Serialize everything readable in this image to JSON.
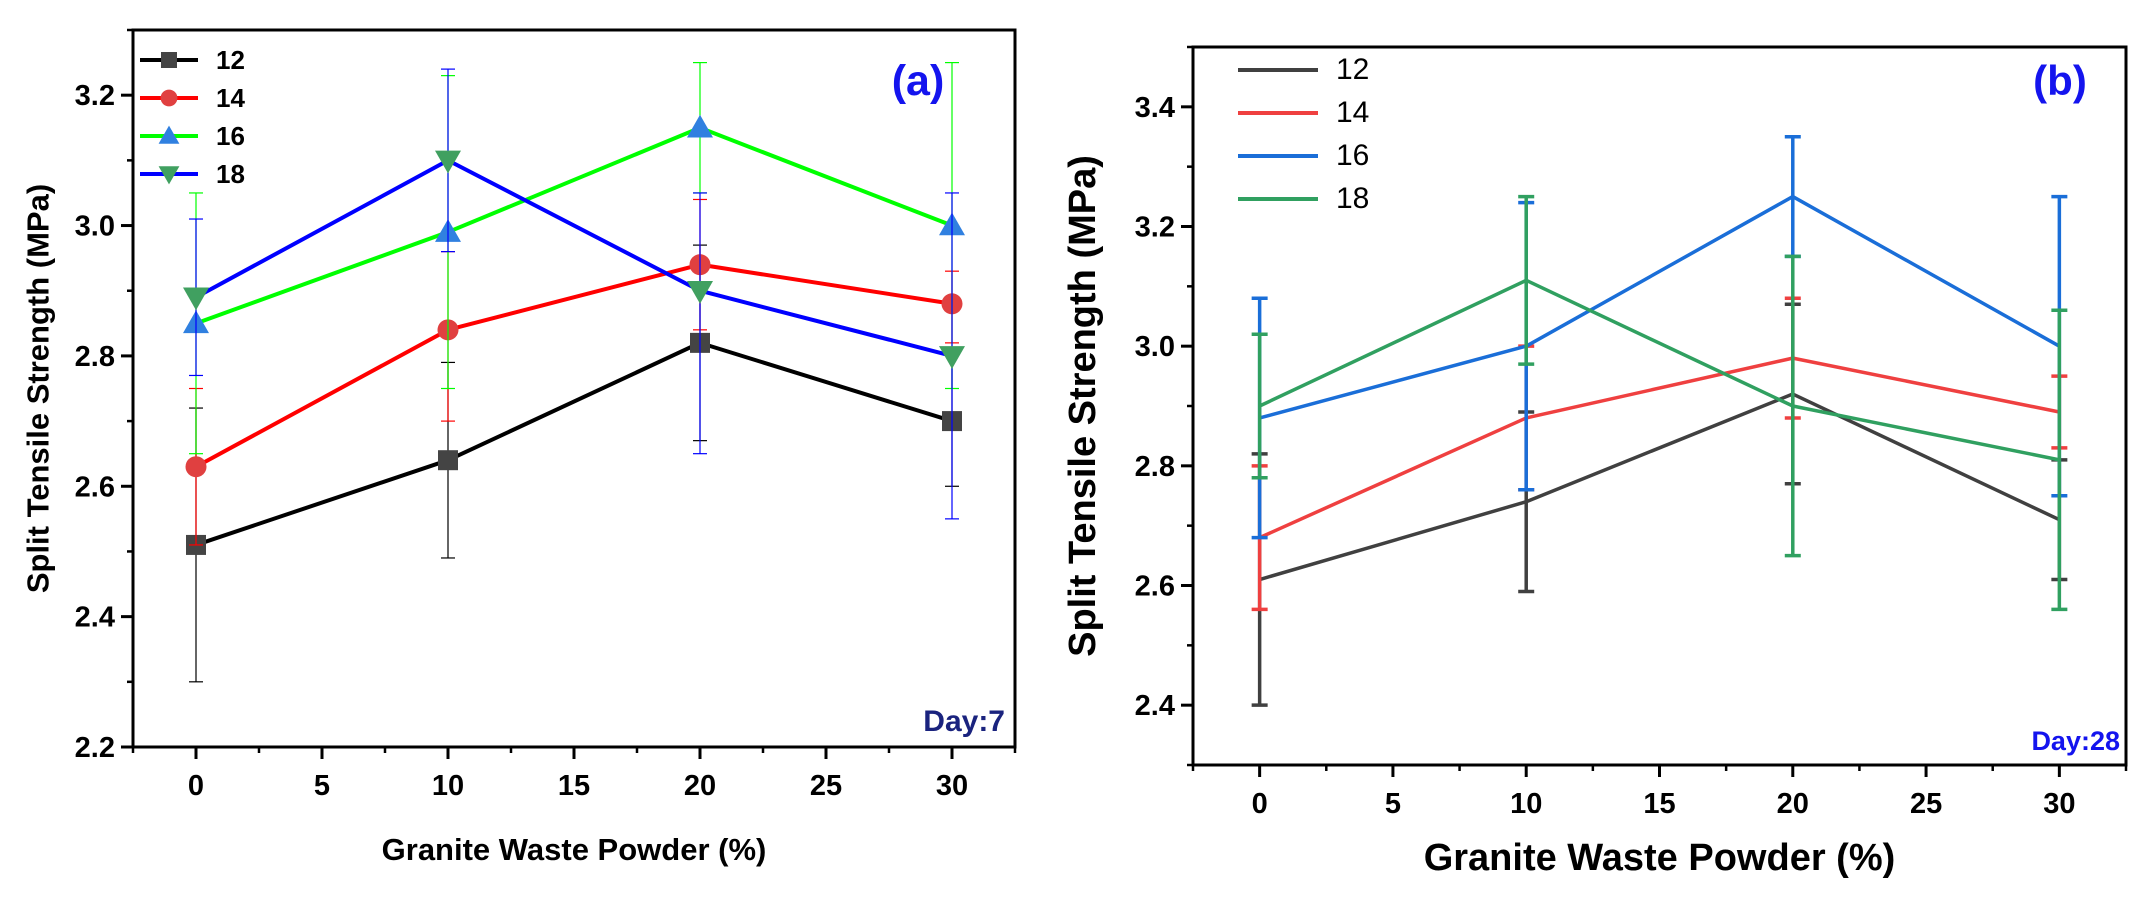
{
  "chart_data": [
    {
      "type": "line",
      "panel_label": "(a)",
      "day_label": "Day:7",
      "xlabel": "Granite Waste Powder (%)",
      "ylabel": "Split Tensile Strength (MPa)",
      "xlim": [
        -2.5,
        32.5
      ],
      "ylim": [
        2.2,
        3.3
      ],
      "x": [
        0,
        10,
        20,
        30
      ],
      "xticks": [
        0,
        5,
        10,
        15,
        20,
        25,
        30
      ],
      "xtick_labels": [
        "0",
        "5",
        "10",
        "15",
        "20",
        "25",
        "30"
      ],
      "yticks": [
        2.2,
        2.4,
        2.6,
        2.8,
        3.0,
        3.2
      ],
      "ytick_labels": [
        "2.2",
        "2.4",
        "2.6",
        "2.8",
        "3.0",
        "3.2"
      ],
      "legend_position": "top-left",
      "series": [
        {
          "name": "12",
          "color": "#000000",
          "marker_color": "#444444",
          "marker": "square",
          "values": [
            2.51,
            2.64,
            2.82,
            2.7
          ],
          "err_low": [
            2.3,
            2.49,
            2.67,
            2.6
          ],
          "err_high": [
            2.72,
            2.79,
            2.97,
            2.8
          ]
        },
        {
          "name": "14",
          "color": "#ff0000",
          "marker_color": "#e04040",
          "marker": "circle",
          "values": [
            2.63,
            2.84,
            2.94,
            2.88
          ],
          "err_low": [
            2.51,
            2.7,
            2.84,
            2.82
          ],
          "err_high": [
            2.75,
            2.96,
            3.04,
            2.93
          ]
        },
        {
          "name": "16",
          "color": "#00ff00",
          "marker_color": "#3080e0",
          "marker": "triangle-up",
          "values": [
            2.85,
            2.99,
            3.15,
            3.0
          ],
          "err_low": [
            2.65,
            2.75,
            3.05,
            2.75
          ],
          "err_high": [
            3.05,
            3.23,
            3.25,
            3.25
          ]
        },
        {
          "name": "18",
          "color": "#0000ff",
          "marker_color": "#40a060",
          "marker": "triangle-down",
          "values": [
            2.89,
            3.1,
            2.9,
            2.8
          ],
          "err_low": [
            2.77,
            2.96,
            2.65,
            2.55
          ],
          "err_high": [
            3.01,
            3.24,
            3.05,
            3.05
          ]
        }
      ]
    },
    {
      "type": "line",
      "panel_label": "(b)",
      "day_label": "Day:28",
      "xlabel": "Granite Waste Powder (%)",
      "ylabel": "Split Tensile Strength (MPa)",
      "xlim": [
        -2.5,
        32.5
      ],
      "ylim": [
        2.3,
        3.5
      ],
      "x": [
        0,
        10,
        20,
        30
      ],
      "xticks": [
        0,
        5,
        10,
        15,
        20,
        25,
        30
      ],
      "xtick_labels": [
        "0",
        "5",
        "10",
        "15",
        "20",
        "25",
        "30"
      ],
      "yticks": [
        2.4,
        2.6,
        2.8,
        3.0,
        3.2,
        3.4
      ],
      "ytick_labels": [
        "2.4",
        "2.6",
        "2.8",
        "3.0",
        "3.2",
        "3.4"
      ],
      "legend_position": "top-left",
      "series": [
        {
          "name": "12",
          "color": "#404040",
          "marker": "none",
          "values": [
            2.61,
            2.74,
            2.92,
            2.71
          ],
          "err_low": [
            2.4,
            2.59,
            2.77,
            2.61
          ],
          "err_high": [
            2.82,
            2.89,
            3.07,
            2.81
          ]
        },
        {
          "name": "14",
          "color": "#ef4040",
          "marker": "none",
          "values": [
            2.68,
            2.88,
            2.98,
            2.89
          ],
          "err_low": [
            2.56,
            2.76,
            2.88,
            2.83
          ],
          "err_high": [
            2.8,
            3.0,
            3.08,
            2.95
          ]
        },
        {
          "name": "16",
          "color": "#1a6ed8",
          "marker": "none",
          "values": [
            2.88,
            3.0,
            3.25,
            3.0
          ],
          "err_low": [
            2.68,
            2.76,
            3.15,
            2.75
          ],
          "err_high": [
            3.08,
            3.24,
            3.35,
            3.25
          ]
        },
        {
          "name": "18",
          "color": "#30a060",
          "marker": "none",
          "values": [
            2.9,
            3.11,
            2.9,
            2.81
          ],
          "err_low": [
            2.78,
            2.97,
            2.65,
            2.56
          ],
          "err_high": [
            3.02,
            3.25,
            3.15,
            3.06
          ]
        }
      ]
    }
  ]
}
